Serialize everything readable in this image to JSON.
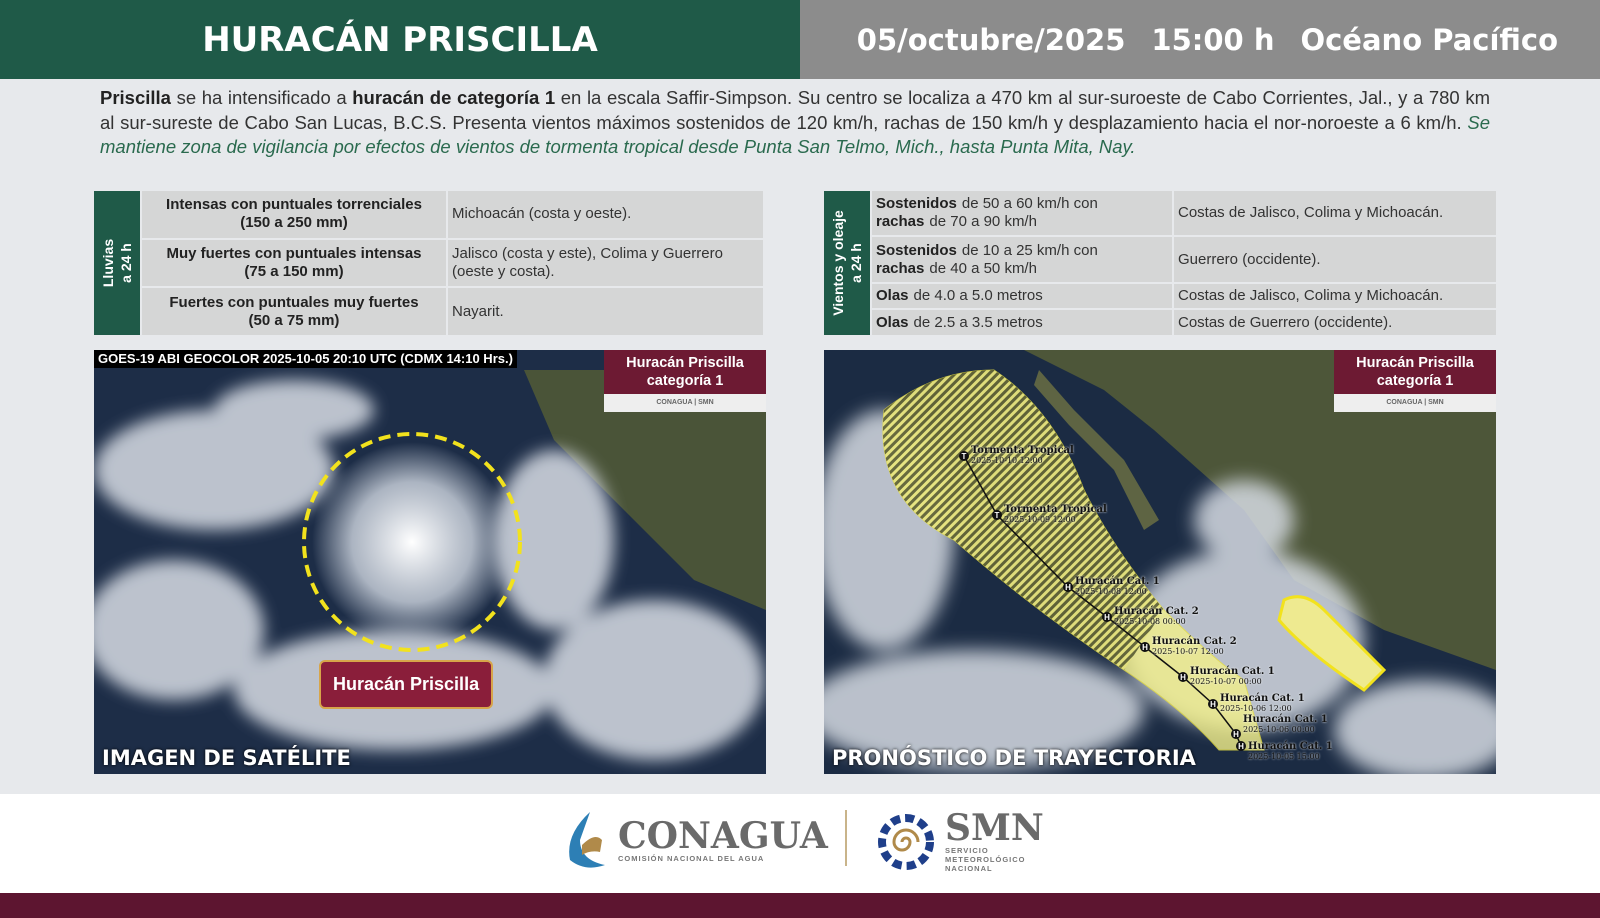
{
  "header": {
    "title": "HURACÁN PRISCILLA",
    "date": "05/octubre/2025",
    "time": "15:00 h",
    "region": "Océano Pacífico"
  },
  "bulletin": {
    "name": "Priscilla",
    "t1": " se ha intensificado a ",
    "category": "huracán de categoría 1",
    "t2": " en la escala Saffir-Simpson. Su centro se localiza a 470 km al sur-suroeste de Cabo Corrientes, Jal., y a 780 km al sur-sureste de Cabo San Lucas, B.C.S. Presenta vientos máximos sostenidos de 120 km/h, rachas de 150 km/h y desplazamiento hacia el nor-noroeste a 6 km/h. ",
    "watch": "Se mantiene zona de vigilancia por efectos de vientos de tormenta tropical desde Punta San Telmo, Mich., hasta Punta Mita, Nay."
  },
  "rain": {
    "label1": "Lluvias",
    "label2": "a 24 h",
    "rows": [
      {
        "intensity": "Intensas con puntuales torrenciales",
        "range": "(150 a 250 mm)",
        "area": "Michoacán (costa y oeste)."
      },
      {
        "intensity": "Muy fuertes con puntuales intensas",
        "range": "(75 a 150 mm)",
        "area": "Jalisco (costa y este), Colima y Guerrero (oeste y costa)."
      },
      {
        "intensity": "Fuertes con puntuales muy fuertes",
        "range": "(50 a 75 mm)",
        "area": "Nayarit."
      }
    ]
  },
  "wind": {
    "label1": "Vientos y oleaje",
    "label2": "a 24 h",
    "rows": [
      {
        "k1": "Sostenidos",
        "v1": "de 50 a 60 km/h con",
        "k2": "rachas",
        "v2": "de 70 a 90 km/h",
        "area": "Costas de Jalisco, Colima y Michoacán."
      },
      {
        "k1": "Sostenidos",
        "v1": "de 10 a 25 km/h con",
        "k2": "rachas",
        "v2": "de 40 a 50 km/h",
        "area": "Guerrero (occidente)."
      },
      {
        "k1": "Olas",
        "v1": "de 4.0 a 5.0 metros",
        "area": "Costas de Jalisco, Colima y Michoacán."
      },
      {
        "k1": "Olas",
        "v1": "de 2.5 a 3.5 metros",
        "area": "Costas de Guerrero (occidente)."
      }
    ]
  },
  "satellite": {
    "source": "GOES-19 ABI GEOCOLOR 2025-10-05 20:10 UTC (CDMX  14:10 Hrs.)",
    "tag1": "Huracán Priscilla",
    "tag2": "categoría 1",
    "tag_logos": "CONAGUA | SMN",
    "storm_label": "Huracán Priscilla",
    "caption": "IMAGEN DE SATÉLITE"
  },
  "forecast": {
    "tag1": "Huracán Priscilla",
    "tag2": "categoría 1",
    "tag_logos": "CONAGUA | SMN",
    "caption": "PRONÓSTICO DE TRAYECTORIA",
    "track": [
      {
        "symbol": "T",
        "status": "Tormenta Tropical",
        "time": "2025-10-10 12:00"
      },
      {
        "symbol": "T",
        "status": "Tormenta Tropical",
        "time": "2025-10-09 12:00"
      },
      {
        "symbol": "H",
        "status": "Huracán Cat. 1",
        "time": "2025-10-08 12:00"
      },
      {
        "symbol": "H",
        "status": "Huracán Cat. 2",
        "time": "2025-10-08 00:00"
      },
      {
        "symbol": "H",
        "status": "Huracán Cat. 2",
        "time": "2025-10-07 12:00"
      },
      {
        "symbol": "H",
        "status": "Huracán Cat. 1",
        "time": "2025-10-07 00:00"
      },
      {
        "symbol": "H",
        "status": "Huracán Cat. 1",
        "time": "2025-10-06 12:00"
      },
      {
        "symbol": "H",
        "status": "Huracán Cat. 1",
        "time": "2025-10-06 00:00"
      },
      {
        "symbol": "H",
        "status": "Huracán Cat. 1",
        "time": "2025-10-05 15:00"
      }
    ],
    "cone_color": "#f3f08a"
  },
  "footer": {
    "conagua": "CONAGUA",
    "conagua_sub": "COMISIÓN NACIONAL DEL AGUA",
    "smn": "SMN",
    "smn_sub1": "SERVICIO",
    "smn_sub2": "METEOROLÓGICO",
    "smn_sub3": "NACIONAL"
  }
}
